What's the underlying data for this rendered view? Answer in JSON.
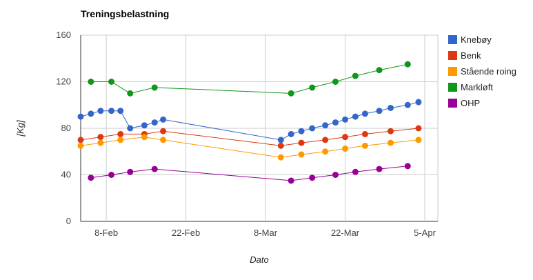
{
  "chart_data": {
    "type": "line",
    "title": "Treningsbelastning",
    "xlabel": "Dato",
    "ylabel": "[Kg]",
    "ylim": [
      0,
      160
    ],
    "y_ticks": [
      0,
      40,
      80,
      120,
      160
    ],
    "x_ticks": [
      {
        "day": 38,
        "label": "8-Feb"
      },
      {
        "day": 52,
        "label": "22-Feb"
      },
      {
        "day": 66,
        "label": "8-Mar"
      },
      {
        "day": 80,
        "label": "22-Mar"
      },
      {
        "day": 94,
        "label": "5-Apr"
      }
    ],
    "xlim_day": [
      33.5,
      96.3
    ],
    "grid": true,
    "legend_position": "right",
    "series": [
      {
        "name": "Knebøy",
        "color": "#3366cc",
        "points": [
          [
            33.5,
            90
          ],
          [
            35.3,
            92.5
          ],
          [
            37.0,
            95
          ],
          [
            38.9,
            95
          ],
          [
            40.5,
            95
          ],
          [
            42.2,
            80
          ],
          [
            44.7,
            82.5
          ],
          [
            46.5,
            85
          ],
          [
            48.0,
            87.5
          ],
          [
            68.7,
            70
          ],
          [
            70.5,
            75
          ],
          [
            72.3,
            77.5
          ],
          [
            74.2,
            80
          ],
          [
            76.5,
            82.5
          ],
          [
            78.3,
            85
          ],
          [
            80.0,
            87.5
          ],
          [
            81.8,
            90
          ],
          [
            83.5,
            92.5
          ],
          [
            86.0,
            95
          ],
          [
            88.0,
            97.5
          ],
          [
            91.0,
            100
          ],
          [
            92.9,
            102.5
          ]
        ]
      },
      {
        "name": "Benk",
        "color": "#dc3912",
        "points": [
          [
            33.5,
            70
          ],
          [
            37.0,
            72.5
          ],
          [
            40.5,
            75
          ],
          [
            44.7,
            75
          ],
          [
            48.0,
            77.5
          ],
          [
            68.7,
            65
          ],
          [
            72.3,
            67.5
          ],
          [
            76.5,
            70
          ],
          [
            80.0,
            72.5
          ],
          [
            83.5,
            75
          ],
          [
            88.0,
            77.5
          ],
          [
            92.9,
            80
          ]
        ]
      },
      {
        "name": "Stående roing",
        "color": "#ff9900",
        "points": [
          [
            33.5,
            65
          ],
          [
            37.0,
            67.5
          ],
          [
            40.5,
            70
          ],
          [
            44.7,
            72.5
          ],
          [
            48.0,
            70
          ],
          [
            68.7,
            55
          ],
          [
            72.3,
            57.5
          ],
          [
            76.5,
            60
          ],
          [
            80.0,
            62.5
          ],
          [
            83.5,
            65
          ],
          [
            88.0,
            67.5
          ],
          [
            92.9,
            70
          ]
        ]
      },
      {
        "name": "Markløft",
        "color": "#109618",
        "points": [
          [
            35.3,
            120
          ],
          [
            38.9,
            120
          ],
          [
            42.2,
            110
          ],
          [
            46.5,
            115
          ],
          [
            70.5,
            110
          ],
          [
            74.2,
            115
          ],
          [
            78.3,
            120
          ],
          [
            81.8,
            125
          ],
          [
            86.0,
            130
          ],
          [
            91.0,
            135
          ]
        ]
      },
      {
        "name": "OHP",
        "color": "#990099",
        "points": [
          [
            35.3,
            37.5
          ],
          [
            38.9,
            40
          ],
          [
            42.2,
            42.5
          ],
          [
            46.5,
            45
          ],
          [
            70.5,
            35
          ],
          [
            74.2,
            37.5
          ],
          [
            78.3,
            40
          ],
          [
            81.8,
            42.5
          ],
          [
            86.0,
            45
          ],
          [
            91.0,
            47.5
          ]
        ]
      }
    ]
  }
}
